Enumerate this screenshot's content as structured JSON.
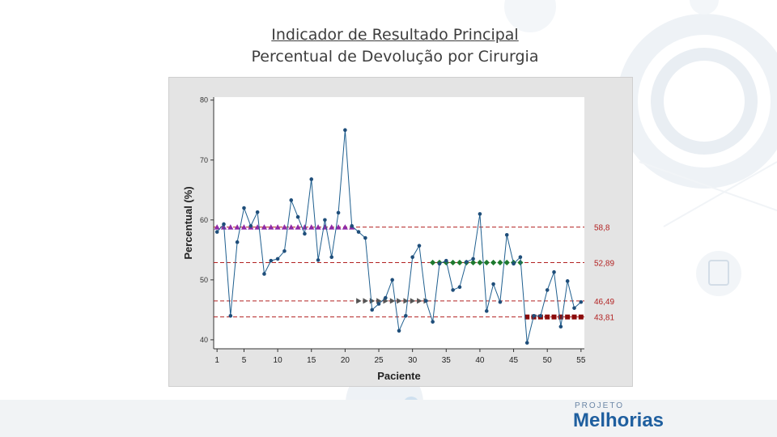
{
  "title": {
    "line1": "Indicador de Resultado Principal",
    "line2": "Percentual de Devolução por Cirurgia"
  },
  "logo": {
    "small": "PROJETO",
    "big": "Melhorias"
  },
  "colors": {
    "line": "#1f5f8f",
    "point": "#1f4e7a",
    "median": "#b22222",
    "purple": "#8e2aa8",
    "green": "#1e7a2e",
    "gray": "#555555",
    "darkred": "#8b0a0a",
    "brand": "#1f5f9f"
  },
  "chart_data": {
    "type": "line",
    "title": "",
    "xlabel": "Paciente",
    "ylabel": "Percentual (%)",
    "xlim": [
      0.5,
      55.5
    ],
    "ylim": [
      38.5,
      80.5
    ],
    "x_ticks": [
      1,
      5,
      10,
      15,
      20,
      25,
      30,
      35,
      40,
      45,
      50,
      55
    ],
    "y_ticks": [
      40,
      50,
      60,
      70,
      80
    ],
    "series": [
      {
        "name": "Percentual de Devolução",
        "x": [
          1,
          2,
          3,
          4,
          5,
          6,
          7,
          8,
          9,
          10,
          11,
          12,
          13,
          14,
          15,
          16,
          17,
          18,
          19,
          20,
          21,
          22,
          23,
          24,
          25,
          26,
          27,
          28,
          29,
          30,
          31,
          32,
          33,
          34,
          35,
          36,
          37,
          38,
          39,
          40,
          41,
          42,
          43,
          44,
          45,
          46,
          47,
          48,
          49,
          50,
          51,
          52,
          53,
          54,
          55
        ],
        "values": [
          58.0,
          59.3,
          44.0,
          56.3,
          62.0,
          59.0,
          61.3,
          51.0,
          53.2,
          53.5,
          54.8,
          63.3,
          60.5,
          57.7,
          66.8,
          53.3,
          60.0,
          53.8,
          61.2,
          75.0,
          59.0,
          58.0,
          57.0,
          45.0,
          46.0,
          47.0,
          50.0,
          41.5,
          44.0,
          53.8,
          55.7,
          46.5,
          43.0,
          52.7,
          53.2,
          48.3,
          48.8,
          53.0,
          53.5,
          61.0,
          44.8,
          49.3,
          46.3,
          57.5,
          52.7,
          53.8,
          39.5,
          44.0,
          44.0,
          48.3,
          51.3,
          42.2,
          49.8,
          45.3,
          46.3
        ]
      }
    ],
    "reference_lines": [
      {
        "value": 58.8,
        "label": "58,8"
      },
      {
        "value": 52.89,
        "label": "52,89"
      },
      {
        "value": 46.49,
        "label": "46,49"
      },
      {
        "value": 43.81,
        "label": "43,81"
      }
    ],
    "segments": [
      {
        "name": "purple-triangles",
        "marker": "triangle-up",
        "color": "#8e2aa8",
        "value": 58.8,
        "x": [
          1,
          2,
          3,
          4,
          5,
          6,
          7,
          8,
          9,
          10,
          11,
          12,
          13,
          14,
          15,
          16,
          17,
          18,
          19,
          20,
          21
        ]
      },
      {
        "name": "gray-triangles",
        "marker": "triangle-right",
        "color": "#555555",
        "value": 46.49,
        "x": [
          22,
          23,
          24,
          25,
          26,
          27,
          28,
          29,
          30,
          31,
          32
        ]
      },
      {
        "name": "green-diamonds",
        "marker": "diamond",
        "color": "#1e7a2e",
        "value": 52.89,
        "x": [
          33,
          34,
          35,
          36,
          37,
          38,
          39,
          40,
          41,
          42,
          43,
          44,
          45,
          46
        ]
      },
      {
        "name": "darkred-squares",
        "marker": "square",
        "color": "#8b0a0a",
        "value": 43.81,
        "x": [
          47,
          48,
          49,
          50,
          51,
          52,
          53,
          54,
          55
        ]
      }
    ]
  }
}
